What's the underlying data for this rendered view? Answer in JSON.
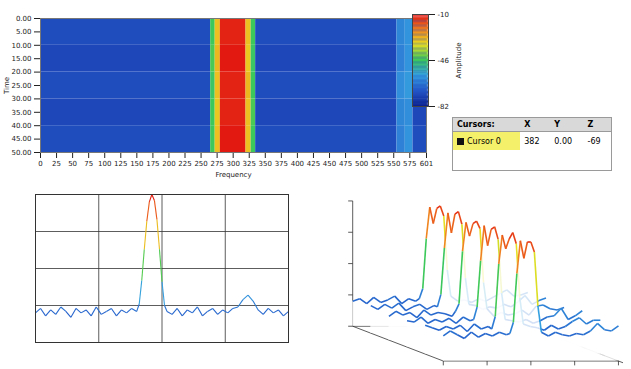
{
  "chart_data": [
    {
      "type": "heatmap",
      "xlabel": "Frequency",
      "ylabel": "Time",
      "xlim": [
        0,
        601
      ],
      "xticks": [
        0,
        25,
        50,
        75,
        100,
        125,
        150,
        175,
        200,
        225,
        250,
        275,
        300,
        325,
        350,
        375,
        400,
        425,
        450,
        475,
        500,
        525,
        550,
        575,
        601
      ],
      "ylim": [
        0,
        50
      ],
      "yticks": [
        {
          "value": 0,
          "label": "0.00"
        },
        {
          "value": 5,
          "label": "5.00"
        },
        {
          "value": 10,
          "label": "10.00"
        },
        {
          "value": 15,
          "label": "15.00"
        },
        {
          "value": 20,
          "label": "20.00"
        },
        {
          "value": 25,
          "label": "25.00"
        },
        {
          "value": 30,
          "label": "30.00"
        },
        {
          "value": 35,
          "label": "35.00"
        },
        {
          "value": 40,
          "label": "40.00"
        },
        {
          "value": 45,
          "label": "45.00"
        },
        {
          "value": 50,
          "label": "50.00"
        }
      ],
      "x_bins": [
        0,
        265,
        272,
        280,
        320,
        328,
        335,
        555,
        568,
        580,
        601
      ],
      "y_bins": [
        0,
        10,
        20,
        30,
        40,
        50
      ],
      "cells": [
        [
          -72,
          -46,
          -30,
          -12,
          -30,
          -46,
          -72,
          -62,
          -60,
          -72
        ],
        [
          -73,
          -45,
          -29,
          -11,
          -31,
          -47,
          -73,
          -63,
          -60,
          -73
        ],
        [
          -72,
          -47,
          -30,
          -12,
          -29,
          -46,
          -72,
          -61,
          -59,
          -72
        ],
        [
          -73,
          -46,
          -31,
          -12,
          -30,
          -45,
          -73,
          -62,
          -61,
          -73
        ],
        [
          -72,
          -46,
          -30,
          -11,
          -30,
          -46,
          -72,
          -63,
          -60,
          -72
        ]
      ],
      "colorbar": {
        "label": "Amplitude",
        "range": [
          -82,
          -10
        ],
        "ticks": [
          -10,
          -46,
          -82
        ]
      }
    },
    {
      "type": "line",
      "x": [
        0,
        2,
        4,
        6,
        8,
        10,
        12,
        14,
        16,
        18,
        20,
        22,
        24,
        26,
        28,
        30,
        32,
        34,
        36,
        38,
        40,
        41,
        42,
        43,
        44,
        45,
        46,
        47,
        48,
        49,
        50,
        51,
        52,
        54,
        56,
        58,
        60,
        62,
        64,
        66,
        68,
        70,
        72,
        74,
        76,
        78,
        80,
        82,
        84,
        86,
        88,
        90,
        92,
        94,
        96,
        98,
        100
      ],
      "values": [
        20,
        23,
        18,
        22,
        19,
        24,
        21,
        17,
        23,
        20,
        22,
        18,
        24,
        19,
        21,
        23,
        18,
        22,
        20,
        23,
        21,
        26,
        42,
        63,
        82,
        95,
        100,
        96,
        83,
        63,
        41,
        25,
        21,
        19,
        23,
        18,
        22,
        20,
        24,
        18,
        21,
        23,
        19,
        22,
        20,
        23,
        24,
        29,
        32,
        28,
        22,
        19,
        23,
        20,
        22,
        18,
        21
      ],
      "xlim": [
        0,
        100
      ],
      "xticks": [
        0,
        25,
        50,
        75,
        100
      ],
      "ylim": [
        0,
        100
      ],
      "yticks": [
        0,
        25,
        50,
        75,
        100
      ],
      "grid": true,
      "tick_labels": false
    },
    {
      "type": "surface3d",
      "x": [
        0,
        4,
        8,
        12,
        16,
        20,
        24,
        28,
        32,
        36,
        38,
        40,
        42,
        44,
        46,
        48,
        50,
        52,
        54,
        56,
        60,
        64,
        68,
        72,
        76,
        80,
        84,
        88,
        92,
        96,
        100
      ],
      "time": [
        0,
        10,
        20,
        30,
        40,
        50
      ],
      "values": [
        [
          20,
          22,
          18,
          23,
          19,
          21,
          24,
          18,
          22,
          20,
          22,
          30,
          70,
          95,
          82,
          94,
          96,
          88,
          45,
          24,
          20,
          21,
          19,
          22,
          20,
          23,
          26,
          29,
          24,
          25,
          27
        ],
        [
          22,
          19,
          23,
          20,
          24,
          18,
          21,
          23,
          19,
          22,
          21,
          31,
          68,
          96,
          80,
          95,
          97,
          87,
          44,
          23,
          22,
          19,
          21,
          20,
          23,
          21,
          25,
          30,
          23,
          26,
          28
        ],
        [
          19,
          23,
          20,
          22,
          18,
          24,
          20,
          22,
          21,
          19,
          23,
          29,
          71,
          94,
          83,
          93,
          95,
          89,
          46,
          25,
          19,
          22,
          20,
          21,
          24,
          20,
          27,
          28,
          25,
          24,
          26
        ],
        [
          21,
          20,
          24,
          19,
          22,
          20,
          23,
          19,
          24,
          21,
          22,
          32,
          69,
          97,
          81,
          94,
          96,
          86,
          43,
          22,
          21,
          20,
          22,
          19,
          21,
          24,
          25,
          31,
          22,
          25,
          29
        ],
        [
          23,
          21,
          19,
          22,
          20,
          23,
          18,
          24,
          20,
          22,
          20,
          30,
          72,
          95,
          84,
          92,
          97,
          88,
          45,
          24,
          22,
          21,
          19,
          23,
          20,
          22,
          26,
          29,
          24,
          27,
          27
        ],
        [
          20,
          24,
          21,
          18,
          23,
          19,
          22,
          20,
          23,
          21,
          22,
          31,
          70,
          96,
          82,
          95,
          95,
          87,
          44,
          23,
          20,
          23,
          21,
          20,
          22,
          21,
          24,
          30,
          25,
          24,
          28
        ]
      ],
      "xlim": [
        0,
        100
      ],
      "xticks": [
        0,
        25,
        50,
        75,
        100
      ],
      "ylim": [
        0,
        100
      ],
      "yticks": [
        0,
        25,
        50,
        75,
        100
      ],
      "tick_labels": false
    }
  ],
  "cursor_table": {
    "columns": [
      "Cursors:",
      "X",
      "Y",
      "Z"
    ],
    "rows": [
      [
        "Cursor 0",
        382,
        "0.00",
        -69
      ]
    ]
  }
}
